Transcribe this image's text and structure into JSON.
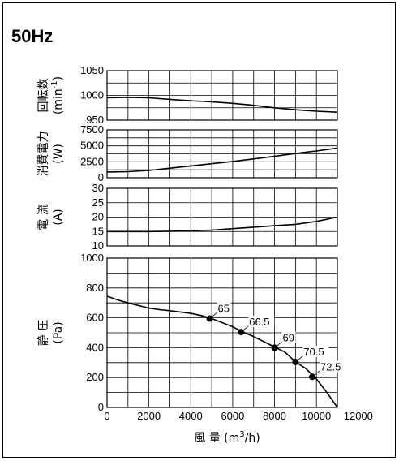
{
  "figure": {
    "frequency_label": "50Hz",
    "xlabel": "風 量 (m3/h)",
    "xlabel_parts": {
      "main": "風 量 (m",
      "sup": "3",
      "tail": "/h)"
    },
    "x_ticks": [
      "0",
      "2000",
      "4000",
      "6000",
      "8000",
      "10000",
      "12000"
    ]
  },
  "chart_data": [
    {
      "type": "line",
      "name": "speed",
      "ylabel": "回転数 (min-1)",
      "ylabel_parts": {
        "title": "回転数",
        "unit_main": "(min",
        "unit_sup": "-1",
        "unit_tail": ")"
      },
      "xlim": [
        0,
        11000
      ],
      "ylim": [
        950,
        1050
      ],
      "y_ticks": [
        "950",
        "1000",
        "1050"
      ],
      "series": [
        {
          "x": [
            0,
            1000,
            2000,
            3000,
            4000,
            5000,
            6000,
            7000,
            8000,
            9000,
            10000,
            11000
          ],
          "y": [
            995,
            996,
            995,
            992,
            989,
            987,
            984,
            980,
            975,
            971,
            968,
            966
          ]
        }
      ]
    },
    {
      "type": "line",
      "name": "power",
      "ylabel": "消費電力 (W)",
      "ylabel_parts": {
        "title": "消費電力",
        "unit_main": "(W)",
        "unit_sup": "",
        "unit_tail": ""
      },
      "xlim": [
        0,
        11000
      ],
      "ylim": [
        0,
        7500
      ],
      "y_ticks": [
        "0",
        "2500",
        "5000",
        "7500"
      ],
      "series": [
        {
          "x": [
            0,
            1000,
            2000,
            3000,
            4000,
            5000,
            6000,
            7000,
            8000,
            9000,
            10000,
            11000
          ],
          "y": [
            900,
            950,
            1150,
            1500,
            1850,
            2200,
            2550,
            2950,
            3350,
            3800,
            4200,
            4650
          ]
        }
      ]
    },
    {
      "type": "line",
      "name": "current",
      "ylabel": "電 流 (A)",
      "ylabel_parts": {
        "title": "電 流",
        "unit_main": "(A)",
        "unit_sup": "",
        "unit_tail": ""
      },
      "xlim": [
        0,
        11000
      ],
      "ylim": [
        10,
        30
      ],
      "y_ticks": [
        "10",
        "15",
        "20",
        "25",
        "30"
      ],
      "series": [
        {
          "x": [
            0,
            2000,
            4000,
            5000,
            6000,
            7000,
            8000,
            9000,
            10000,
            11000
          ],
          "y": [
            15,
            15,
            15.2,
            15.5,
            16,
            16.5,
            17,
            17.5,
            18.5,
            20
          ]
        }
      ]
    },
    {
      "type": "line",
      "name": "static-pressure",
      "ylabel": "静 圧 (Pa)",
      "ylabel_parts": {
        "title": "静 圧",
        "unit_main": "(Pa)",
        "unit_sup": "",
        "unit_tail": ""
      },
      "xlim": [
        0,
        11000
      ],
      "ylim": [
        0,
        1000
      ],
      "y_ticks": [
        "0",
        "200",
        "400",
        "600",
        "800",
        "1000"
      ],
      "series": [
        {
          "x": [
            0,
            500,
            1000,
            2000,
            2500,
            3000,
            4000,
            4500,
            5000,
            6000,
            6500,
            7000,
            8000,
            8500,
            9000,
            9500,
            10000,
            10500,
            11000
          ],
          "y": [
            745,
            720,
            700,
            665,
            655,
            648,
            630,
            615,
            595,
            540,
            505,
            475,
            405,
            370,
            305,
            260,
            190,
            100,
            0
          ]
        }
      ],
      "points": [
        {
          "x": 4900,
          "y": 595,
          "label": "65"
        },
        {
          "x": 6400,
          "y": 505,
          "label": "66.5"
        },
        {
          "x": 8000,
          "y": 400,
          "label": "69"
        },
        {
          "x": 9000,
          "y": 305,
          "label": "70.5"
        },
        {
          "x": 9800,
          "y": 205,
          "label": "72.5"
        }
      ]
    }
  ]
}
